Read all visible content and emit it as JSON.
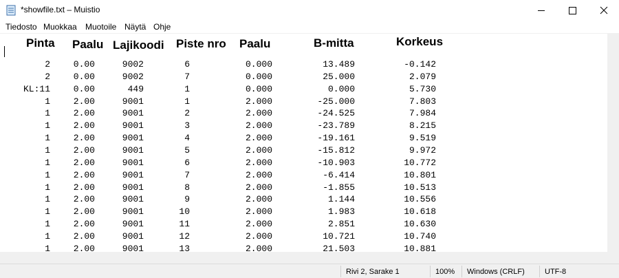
{
  "window": {
    "title": "*showfile.txt – Muistio"
  },
  "menu": [
    "Tiedosto",
    "Muokkaa",
    "Muotoile",
    "Näytä",
    "Ohje"
  ],
  "table": {
    "header": [
      "Pinta",
      "Paalu",
      "Lajikoodi",
      "Piste nro",
      "Paalu",
      "B-mitta",
      "Korkeus"
    ],
    "rows": [
      [
        "2",
        "0.00",
        "9002",
        "6",
        "0.000",
        "13.489",
        "-0.142"
      ],
      [
        "2",
        "0.00",
        "9002",
        "7",
        "0.000",
        "25.000",
        "2.079"
      ],
      [
        "KL:11",
        "0.00",
        "449",
        "1",
        "0.000",
        "0.000",
        "5.730"
      ],
      [
        "1",
        "2.00",
        "9001",
        "1",
        "2.000",
        "-25.000",
        "7.803"
      ],
      [
        "1",
        "2.00",
        "9001",
        "2",
        "2.000",
        "-24.525",
        "7.984"
      ],
      [
        "1",
        "2.00",
        "9001",
        "3",
        "2.000",
        "-23.789",
        "8.215"
      ],
      [
        "1",
        "2.00",
        "9001",
        "4",
        "2.000",
        "-19.161",
        "9.519"
      ],
      [
        "1",
        "2.00",
        "9001",
        "5",
        "2.000",
        "-15.812",
        "9.972"
      ],
      [
        "1",
        "2.00",
        "9001",
        "6",
        "2.000",
        "-10.903",
        "10.772"
      ],
      [
        "1",
        "2.00",
        "9001",
        "7",
        "2.000",
        "-6.414",
        "10.801"
      ],
      [
        "1",
        "2.00",
        "9001",
        "8",
        "2.000",
        "-1.855",
        "10.513"
      ],
      [
        "1",
        "2.00",
        "9001",
        "9",
        "2.000",
        "1.144",
        "10.556"
      ],
      [
        "1",
        "2.00",
        "9001",
        "10",
        "2.000",
        "1.983",
        "10.618"
      ],
      [
        "1",
        "2.00",
        "9001",
        "11",
        "2.000",
        "2.851",
        "10.630"
      ],
      [
        "1",
        "2.00",
        "9001",
        "12",
        "2.000",
        "10.721",
        "10.740"
      ],
      [
        "1",
        "2.00",
        "9001",
        "13",
        "2.000",
        "21.503",
        "10.881"
      ]
    ]
  },
  "status": {
    "position": "Rivi 2, Sarake 1",
    "zoom": "100%",
    "line_ending": "Windows (CRLF)",
    "encoding": "UTF-8"
  }
}
